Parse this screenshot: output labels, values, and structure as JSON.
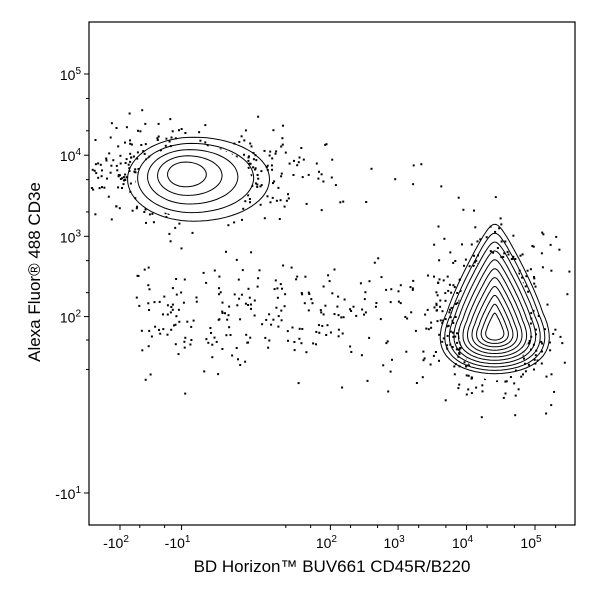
{
  "chart_data": {
    "type": "contour",
    "xlabel": "BD Horizon™ BUV661 CD45R/B220",
    "ylabel": "Alexa Fluor® 488 CD3e",
    "x_scale": "biexponential",
    "y_scale": "biexponential",
    "x_ticks": [
      {
        "base": "-10",
        "exp": "2",
        "value": -100
      },
      {
        "base": "-10",
        "exp": "1",
        "value": -10
      },
      {
        "base": "10",
        "exp": "2",
        "value": 100
      },
      {
        "base": "10",
        "exp": "3",
        "value": 1000
      },
      {
        "base": "10",
        "exp": "4",
        "value": 10000
      },
      {
        "base": "10",
        "exp": "5",
        "value": 100000
      }
    ],
    "y_ticks": [
      {
        "base": "-10",
        "exp": "1",
        "value": -10
      },
      {
        "base": "10",
        "exp": "2",
        "value": 100
      },
      {
        "base": "10",
        "exp": "3",
        "value": 1000
      },
      {
        "base": "10",
        "exp": "4",
        "value": 10000
      },
      {
        "base": "10",
        "exp": "5",
        "value": 100000
      }
    ],
    "populations": [
      {
        "center_x": -10,
        "center_y": 6000,
        "spread_x_decades": 0.7,
        "spread_y_decades": 0.35,
        "contour_levels": 5,
        "outliers": 520
      },
      {
        "center_x": 25000,
        "center_y": 70,
        "spread_x_decades": 0.35,
        "spread_y_decades": 0.9,
        "contour_levels": 11,
        "outliers": 520
      }
    ],
    "grid": false,
    "legend": "none"
  }
}
